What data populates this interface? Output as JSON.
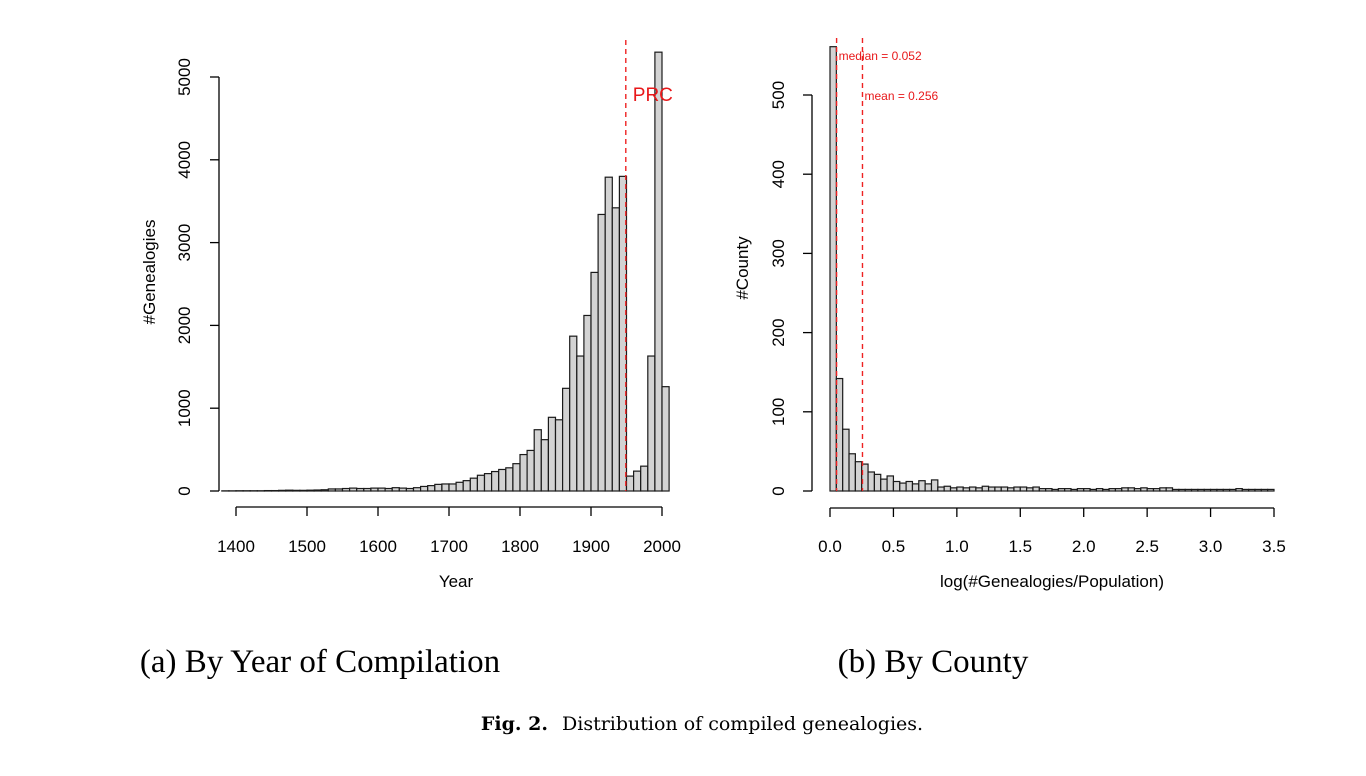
{
  "chart_data": [
    {
      "type": "bar",
      "subtype": "histogram",
      "xlabel": "Year",
      "ylabel": "#Genealogies",
      "xlim": [
        1375,
        2010
      ],
      "ylim": [
        0,
        5000
      ],
      "x_ticks": [
        1400,
        1500,
        1600,
        1700,
        1800,
        1900,
        2000
      ],
      "x_tick_labels": [
        "1400",
        "1500",
        "1600",
        "1700",
        "1800",
        "1900",
        "2000"
      ],
      "y_ticks": [
        0,
        1000,
        2000,
        3000,
        4000,
        5000
      ],
      "y_tick_labels": [
        "0",
        "1000",
        "2000",
        "3000",
        "4000",
        "5000"
      ],
      "bin_width": 10,
      "bin_starts": [
        1380,
        1390,
        1400,
        1410,
        1420,
        1430,
        1440,
        1450,
        1460,
        1470,
        1480,
        1490,
        1500,
        1510,
        1520,
        1530,
        1540,
        1550,
        1560,
        1570,
        1580,
        1590,
        1600,
        1610,
        1620,
        1630,
        1640,
        1650,
        1660,
        1670,
        1680,
        1690,
        1700,
        1710,
        1720,
        1730,
        1740,
        1750,
        1760,
        1770,
        1780,
        1790,
        1800,
        1810,
        1820,
        1830,
        1840,
        1850,
        1860,
        1870,
        1880,
        1890,
        1900,
        1910,
        1920,
        1930,
        1940,
        1950,
        1960,
        1970,
        1980,
        1990,
        2000
      ],
      "values": [
        2,
        2,
        3,
        3,
        3,
        3,
        5,
        5,
        8,
        10,
        8,
        8,
        10,
        12,
        15,
        25,
        25,
        30,
        35,
        30,
        30,
        35,
        35,
        30,
        40,
        35,
        30,
        40,
        55,
        65,
        80,
        85,
        85,
        105,
        125,
        155,
        190,
        210,
        235,
        260,
        280,
        330,
        440,
        490,
        740,
        620,
        890,
        860,
        1240,
        1870,
        1630,
        2120,
        2640,
        3340,
        3790,
        3420,
        3800,
        180,
        240,
        300,
        1630,
        5300,
        1260
      ],
      "vline": {
        "x": 1949,
        "label": "PRC"
      }
    },
    {
      "type": "bar",
      "subtype": "histogram",
      "xlabel": "log(#Genealogies/Population)",
      "ylabel": "#County",
      "xlim": [
        0,
        3.5
      ],
      "ylim": [
        0,
        560
      ],
      "x_ticks": [
        0.0,
        0.5,
        1.0,
        1.5,
        2.0,
        2.5,
        3.0,
        3.5
      ],
      "x_tick_labels": [
        "0.0",
        "0.5",
        "1.0",
        "1.5",
        "2.0",
        "2.5",
        "3.0",
        "3.5"
      ],
      "y_ticks": [
        0,
        100,
        200,
        300,
        400,
        500
      ],
      "y_tick_labels": [
        "0",
        "100",
        "200",
        "300",
        "400",
        "500"
      ],
      "bin_width": 0.05,
      "values": [
        561,
        142,
        78,
        47,
        37,
        34,
        24,
        21,
        15,
        19,
        12,
        10,
        12,
        9,
        13,
        9,
        14,
        5,
        6,
        4,
        5,
        4,
        5,
        4,
        6,
        5,
        5,
        5,
        4,
        5,
        5,
        4,
        5,
        3,
        3,
        2,
        3,
        3,
        2,
        3,
        3,
        2,
        3,
        2,
        3,
        3,
        4,
        4,
        3,
        4,
        3,
        3,
        4,
        4,
        2,
        2,
        2,
        2,
        2,
        2,
        2,
        2,
        2,
        2,
        3,
        2,
        2,
        2,
        2,
        2
      ],
      "vlines": [
        {
          "x": 0.052,
          "label": "median = 0.052"
        },
        {
          "x": 0.256,
          "label": "mean = 0.256"
        }
      ]
    }
  ],
  "subcaptions": {
    "a": "(a) By Year of Compilation",
    "b": "(b) By County"
  },
  "caption": {
    "label": "Fig. 2.",
    "text": "Distribution of compiled genealogies."
  },
  "colors": {
    "bar_fill": "#d3d3d3",
    "bar_stroke": "#1a1a1a",
    "ref_line": "#ee2222"
  }
}
